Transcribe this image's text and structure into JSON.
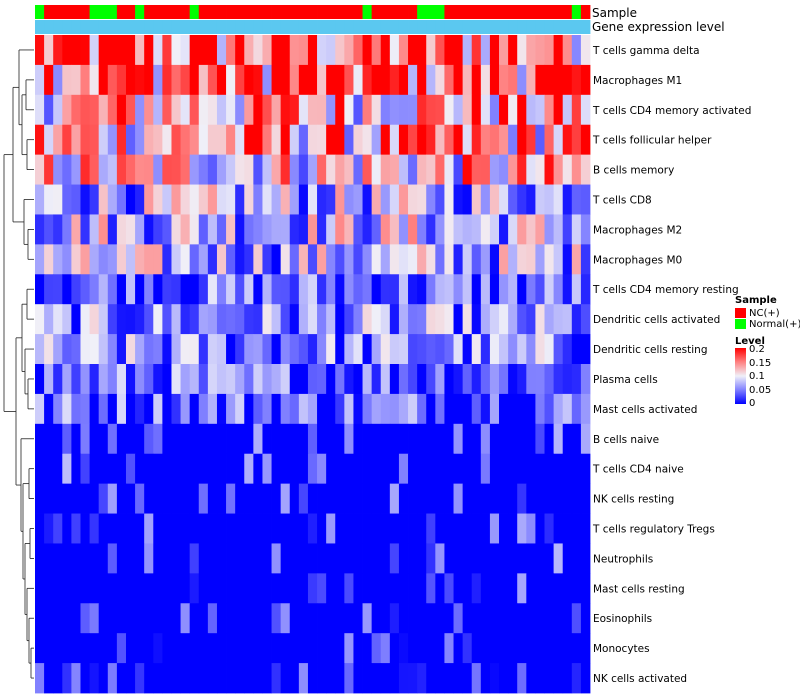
{
  "chart_data": {
    "type": "heatmap",
    "annotation_rows": [
      {
        "name": "Sample"
      },
      {
        "name": "Gene expression level"
      }
    ],
    "sample_groups": [
      "Normal(+)",
      "NC(+)",
      "NC(+)",
      "NC(+)",
      "NC(+)",
      "NC(+)",
      "Normal(+)",
      "Normal(+)",
      "Normal(+)",
      "NC(+)",
      "NC(+)",
      "Normal(+)",
      "NC(+)",
      "NC(+)",
      "NC(+)",
      "NC(+)",
      "NC(+)",
      "Normal(+)",
      "NC(+)",
      "NC(+)",
      "NC(+)",
      "NC(+)",
      "NC(+)",
      "NC(+)",
      "NC(+)",
      "NC(+)",
      "NC(+)",
      "NC(+)",
      "NC(+)",
      "NC(+)",
      "NC(+)",
      "NC(+)",
      "NC(+)",
      "NC(+)",
      "NC(+)",
      "NC(+)",
      "Normal(+)",
      "NC(+)",
      "NC(+)",
      "NC(+)",
      "NC(+)",
      "NC(+)",
      "Normal(+)",
      "Normal(+)",
      "Normal(+)",
      "NC(+)",
      "NC(+)",
      "NC(+)",
      "NC(+)",
      "NC(+)",
      "NC(+)",
      "NC(+)",
      "NC(+)",
      "NC(+)",
      "NC(+)",
      "NC(+)",
      "NC(+)",
      "NC(+)",
      "NC(+)",
      "Normal(+)",
      "NC(+)"
    ],
    "expression_level_color": "#5bc8f0",
    "rows": [
      "T cells gamma delta",
      "Macrophages M1",
      "T cells CD4 memory activated",
      "T cells follicular helper",
      "B cells memory",
      "T cells CD8",
      "Macrophages M2",
      "Macrophages M0",
      "T cells CD4 memory resting",
      "Dendritic cells activated",
      "Dendritic cells resting",
      "Plasma cells",
      "Mast cells activated",
      "B cells naive",
      "T cells CD4 naive",
      "NK cells resting",
      "T cells regulatory  Tregs",
      "Neutrophils",
      "Mast cells resting",
      "Eosinophils",
      "Monocytes",
      "NK cells activated"
    ],
    "row_means": [
      0.16,
      0.17,
      0.13,
      0.13,
      0.11,
      0.07,
      0.08,
      0.07,
      0.04,
      0.05,
      0.05,
      0.04,
      0.04,
      0.02,
      0.02,
      0.01,
      0.01,
      0.015,
      0.01,
      0.01,
      0.003,
      0.003
    ],
    "n_columns": 61,
    "color_scale": {
      "stops": [
        0,
        0.05,
        0.1,
        0.15,
        0.2
      ],
      "colors": [
        "#0000ff",
        "#8080ff",
        "#f0f0f8",
        "#ff8080",
        "#ff0000"
      ]
    },
    "legend": {
      "position": "right",
      "sample_title": "Sample",
      "sample_entries": [
        {
          "label": "NC(+)",
          "color": "#ff0000"
        },
        {
          "label": "Normal(+)",
          "color": "#00ff00"
        }
      ],
      "level_title": "Level",
      "level_ticks": [
        "0.2",
        "0.15",
        "0.1",
        "0.05",
        "0"
      ]
    }
  }
}
